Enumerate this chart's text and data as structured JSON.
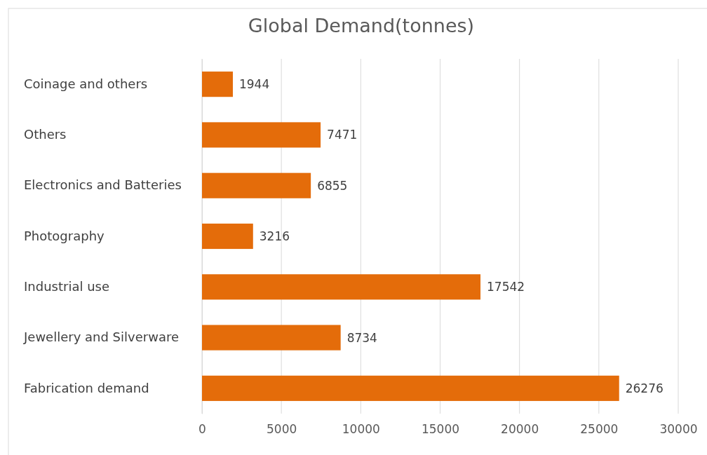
{
  "chart_data": {
    "type": "bar",
    "orientation": "horizontal",
    "title": "Global Demand(tonnes)",
    "categories": [
      "Coinage and others",
      "Others",
      "Electronics and Batteries",
      "Photography",
      "Industrial use",
      "Jewellery and Silverware",
      "Fabrication demand"
    ],
    "values": [
      1944,
      7471,
      6855,
      3216,
      17542,
      8734,
      26276
    ],
    "color": "#e46c0a",
    "xlim": [
      0,
      30000
    ],
    "xticks": [
      0,
      5000,
      10000,
      15000,
      20000,
      25000,
      30000
    ],
    "grid": "x",
    "data_labels": true
  }
}
